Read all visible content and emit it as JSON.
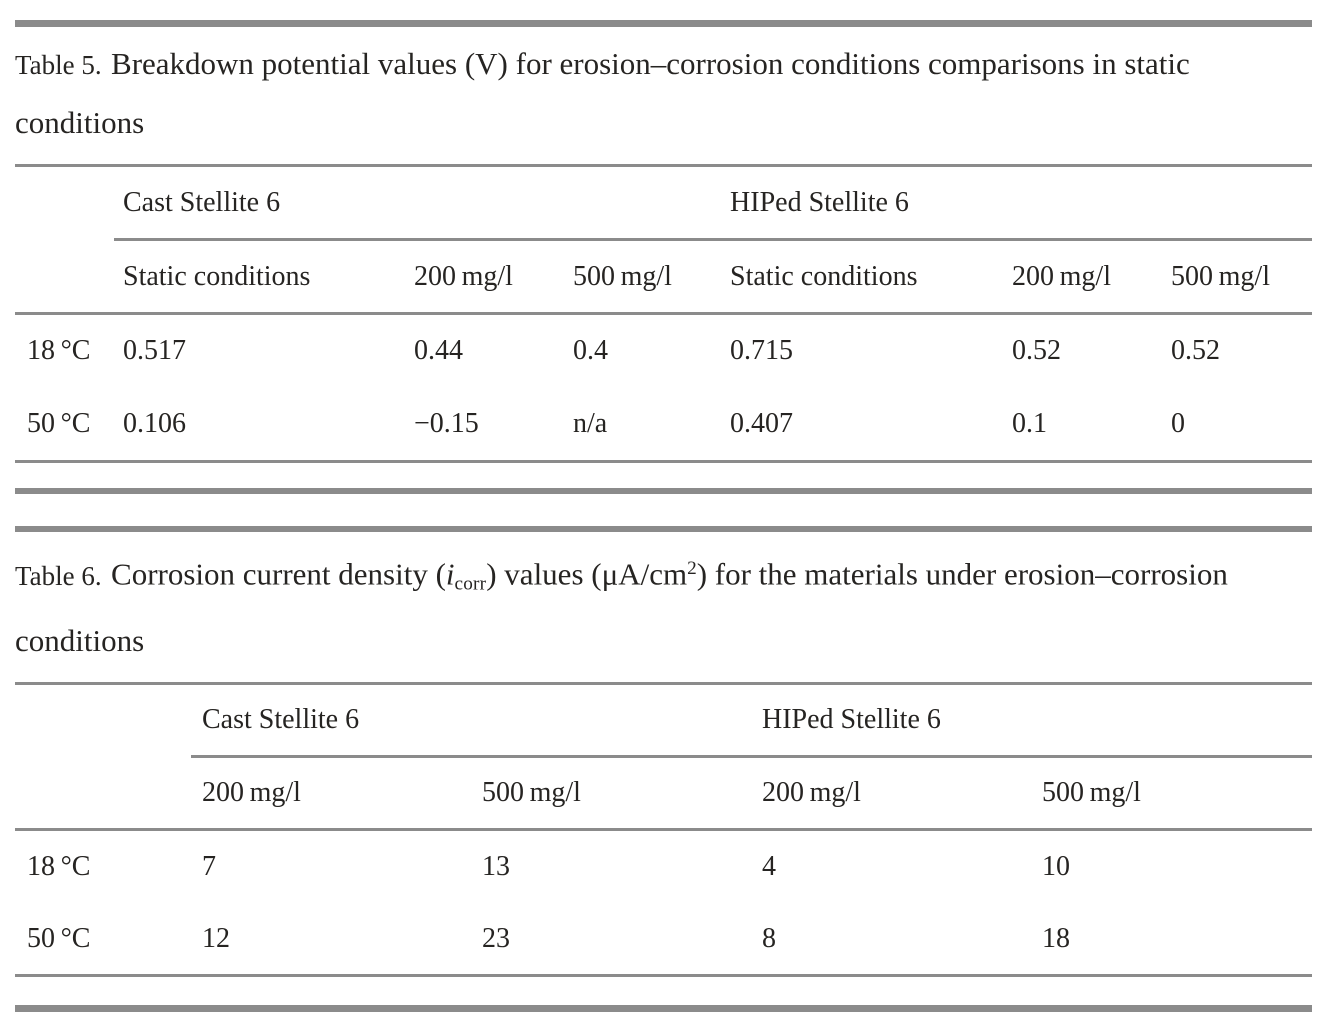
{
  "colors": {
    "background": "#ffffff",
    "text": "#262422",
    "rule": "#8b8b8b"
  },
  "table5": {
    "caption_label": "Table 5.",
    "caption_text": "Breakdown potential values (V) for erosion–corrosion conditions comparisons in static conditions",
    "group_headers": [
      "Cast Stellite 6",
      "HIPed Stellite 6"
    ],
    "sub_headers": [
      "Static conditions",
      "200 mg/l",
      "500 mg/l",
      "Static conditions",
      "200 mg/l",
      "500 mg/l"
    ],
    "rows": [
      {
        "label": "18 °C",
        "values": [
          "0.517",
          "0.44",
          "0.4",
          "0.715",
          "0.52",
          "0.52"
        ]
      },
      {
        "label": "50 °C",
        "values": [
          "0.106",
          "−0.15",
          "n/a",
          "0.407",
          "0.1",
          "0"
        ]
      }
    ]
  },
  "table6": {
    "caption_label": "Table 6.",
    "caption_part1": "Corrosion current density (",
    "caption_italic_i": "i",
    "caption_subscript": "corr",
    "caption_part2": ") values (μA/cm",
    "caption_superscript": "2",
    "caption_part3": ") for the materials under erosion–corrosion conditions",
    "group_headers": [
      "Cast Stellite 6",
      "HIPed Stellite 6"
    ],
    "sub_headers": [
      "200 mg/l",
      "500 mg/l",
      "200 mg/l",
      "500 mg/l"
    ],
    "rows": [
      {
        "label": "18 °C",
        "values": [
          "7",
          "13",
          "4",
          "10"
        ]
      },
      {
        "label": "50 °C",
        "values": [
          "12",
          "23",
          "8",
          "18"
        ]
      }
    ]
  }
}
